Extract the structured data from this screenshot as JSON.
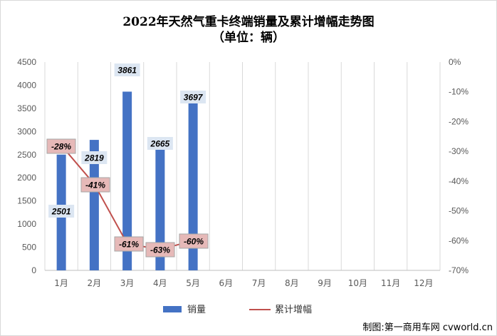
{
  "title": "2022年天然气重卡终端销量及累计增幅走势图",
  "subtitle": "（单位：辆）",
  "credit": "制图:第一商用车网 cvworld.cn",
  "chart_data": {
    "type": "bar",
    "categories": [
      "1月",
      "2月",
      "3月",
      "4月",
      "5月",
      "6月",
      "7月",
      "8月",
      "9月",
      "10月",
      "11月",
      "12月"
    ],
    "series": [
      {
        "name": "销量",
        "kind": "bar",
        "axis": "left",
        "color": "#4472c4",
        "values": [
          2501,
          2819,
          3861,
          2665,
          3697,
          null,
          null,
          null,
          null,
          null,
          null,
          null
        ],
        "labels": [
          "2501",
          "2819",
          "3861",
          "2665",
          "3697"
        ]
      },
      {
        "name": "累计增幅",
        "kind": "line",
        "axis": "right",
        "color": "#c0504d",
        "values": [
          -28,
          -41,
          -61,
          -63,
          -60,
          null,
          null,
          null,
          null,
          null,
          null,
          null
        ],
        "labels": [
          "-28%",
          "-41%",
          "-61%",
          "-63%",
          "-60%"
        ]
      }
    ],
    "y_left": {
      "min": 0,
      "max": 4500,
      "step": 500,
      "ticks": [
        "0",
        "500",
        "1000",
        "1500",
        "2000",
        "2500",
        "3000",
        "3500",
        "4000",
        "4500"
      ]
    },
    "y_right": {
      "min": -70,
      "max": 0,
      "step": 10,
      "ticks": [
        "0%",
        "-10%",
        "-20%",
        "-30%",
        "-40%",
        "-50%",
        "-60%",
        "-70%"
      ]
    },
    "grid": "vertical",
    "legend": "bottom"
  }
}
